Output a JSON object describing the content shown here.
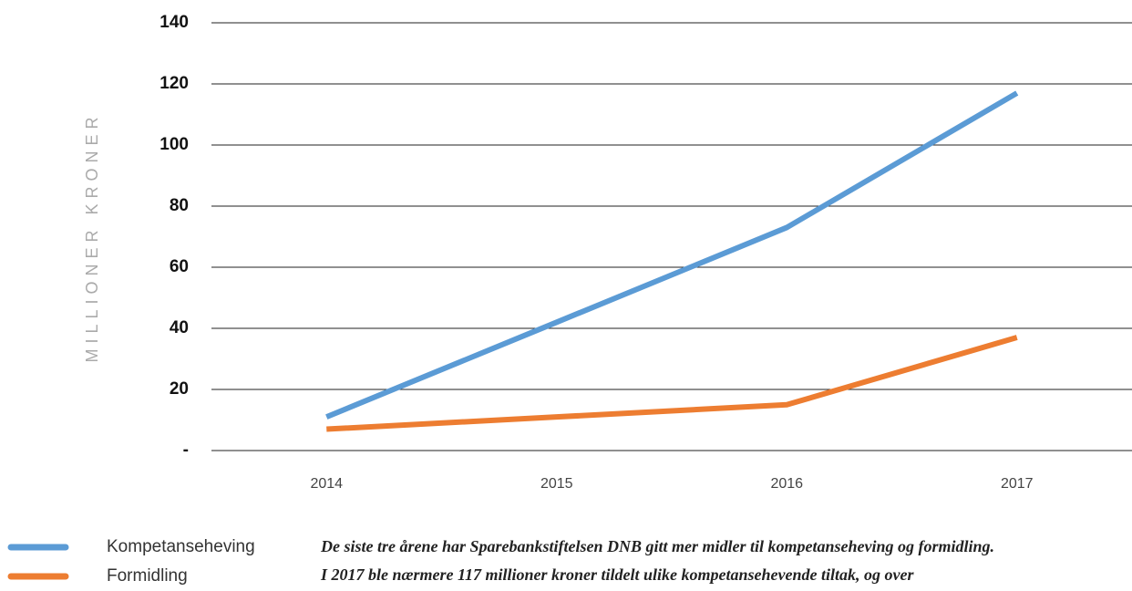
{
  "chart_data": {
    "type": "line",
    "y_label": "MILLIONER KRONER",
    "categories": [
      "2014",
      "2015",
      "2016",
      "2017"
    ],
    "series": [
      {
        "name": "Kompetanseheving",
        "color": "#5b9bd5",
        "values": [
          11,
          42,
          73,
          117
        ]
      },
      {
        "name": "Formidling",
        "color": "#ed7d31",
        "values": [
          7,
          11,
          15,
          37
        ]
      }
    ],
    "ylim": [
      0,
      140
    ],
    "yticks": [
      {
        "value": 0,
        "label": "-"
      },
      20,
      40,
      60,
      80,
      100,
      120,
      140
    ],
    "grid": true,
    "legend": "bottom-left",
    "annotations": [
      "De siste tre årene har Sparebankstiftelsen DNB gitt mer midler til kompetanseheving og formidling.",
      "I 2017 ble nærmere 117 millioner kroner tildelt ulike kompetansehevende tiltak, og over"
    ]
  }
}
